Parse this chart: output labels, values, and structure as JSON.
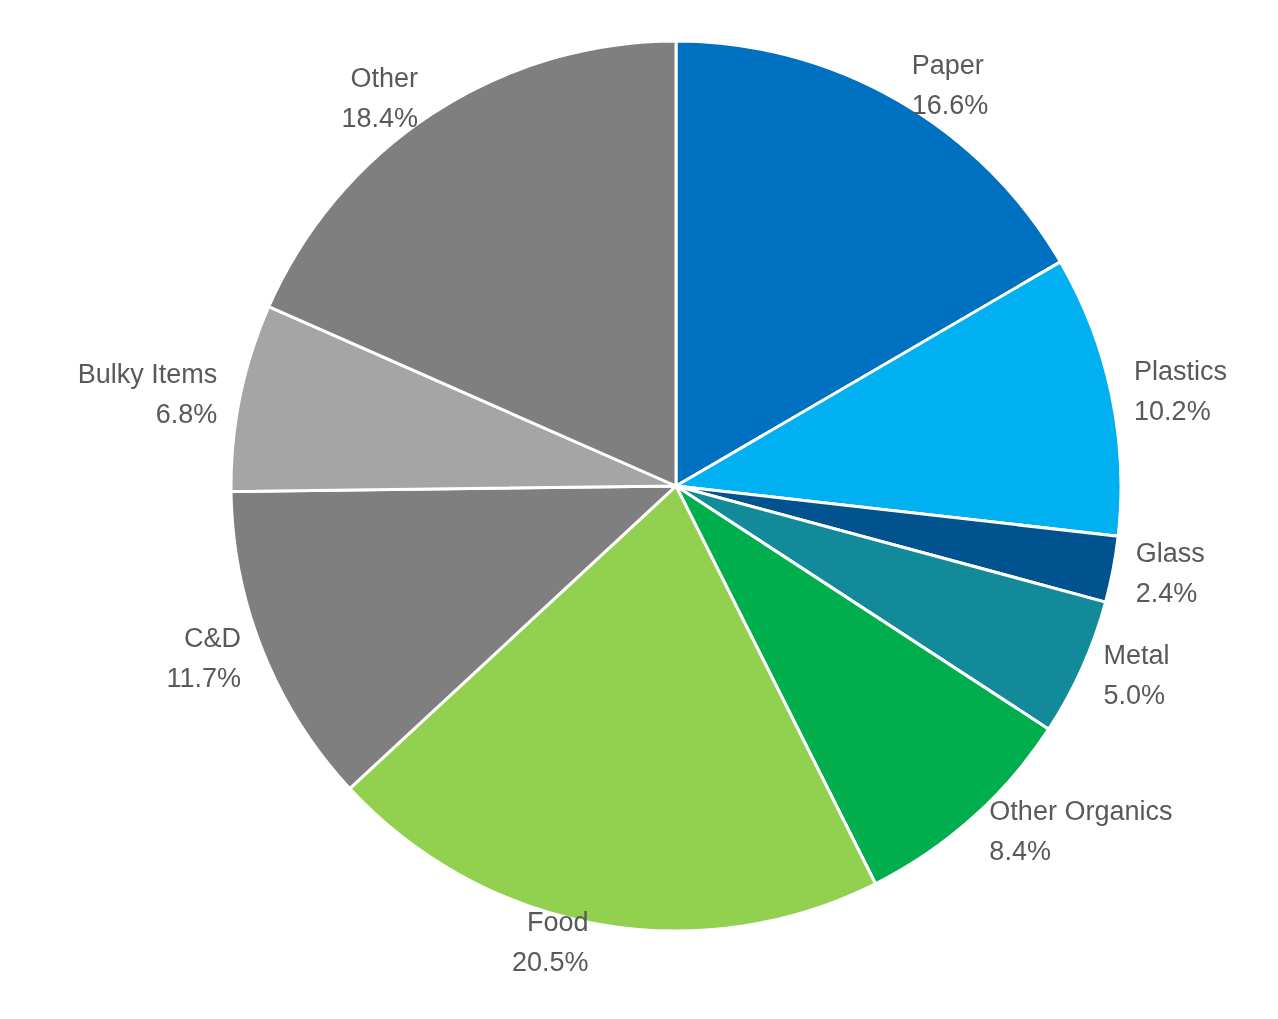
{
  "chart_data": {
    "type": "pie",
    "categories": [
      "Paper",
      "Plastics",
      "Glass",
      "Metal",
      "Other Organics",
      "Food",
      "C&D",
      "Bulky Items",
      "Other"
    ],
    "values": [
      16.6,
      10.2,
      2.4,
      5.0,
      8.4,
      20.5,
      11.7,
      6.8,
      18.4
    ],
    "value_labels": [
      "16.6%",
      "10.2%",
      "2.4%",
      "5.0%",
      "8.4%",
      "20.5%",
      "11.7%",
      "6.8%",
      "18.4%"
    ],
    "colors": [
      "#0070c0",
      "#00b0f0",
      "#00538f",
      "#138a99",
      "#00ae4d",
      "#92d050",
      "#7f7f7f",
      "#a5a5a5",
      "#7f7f7f"
    ],
    "legend": false
  }
}
